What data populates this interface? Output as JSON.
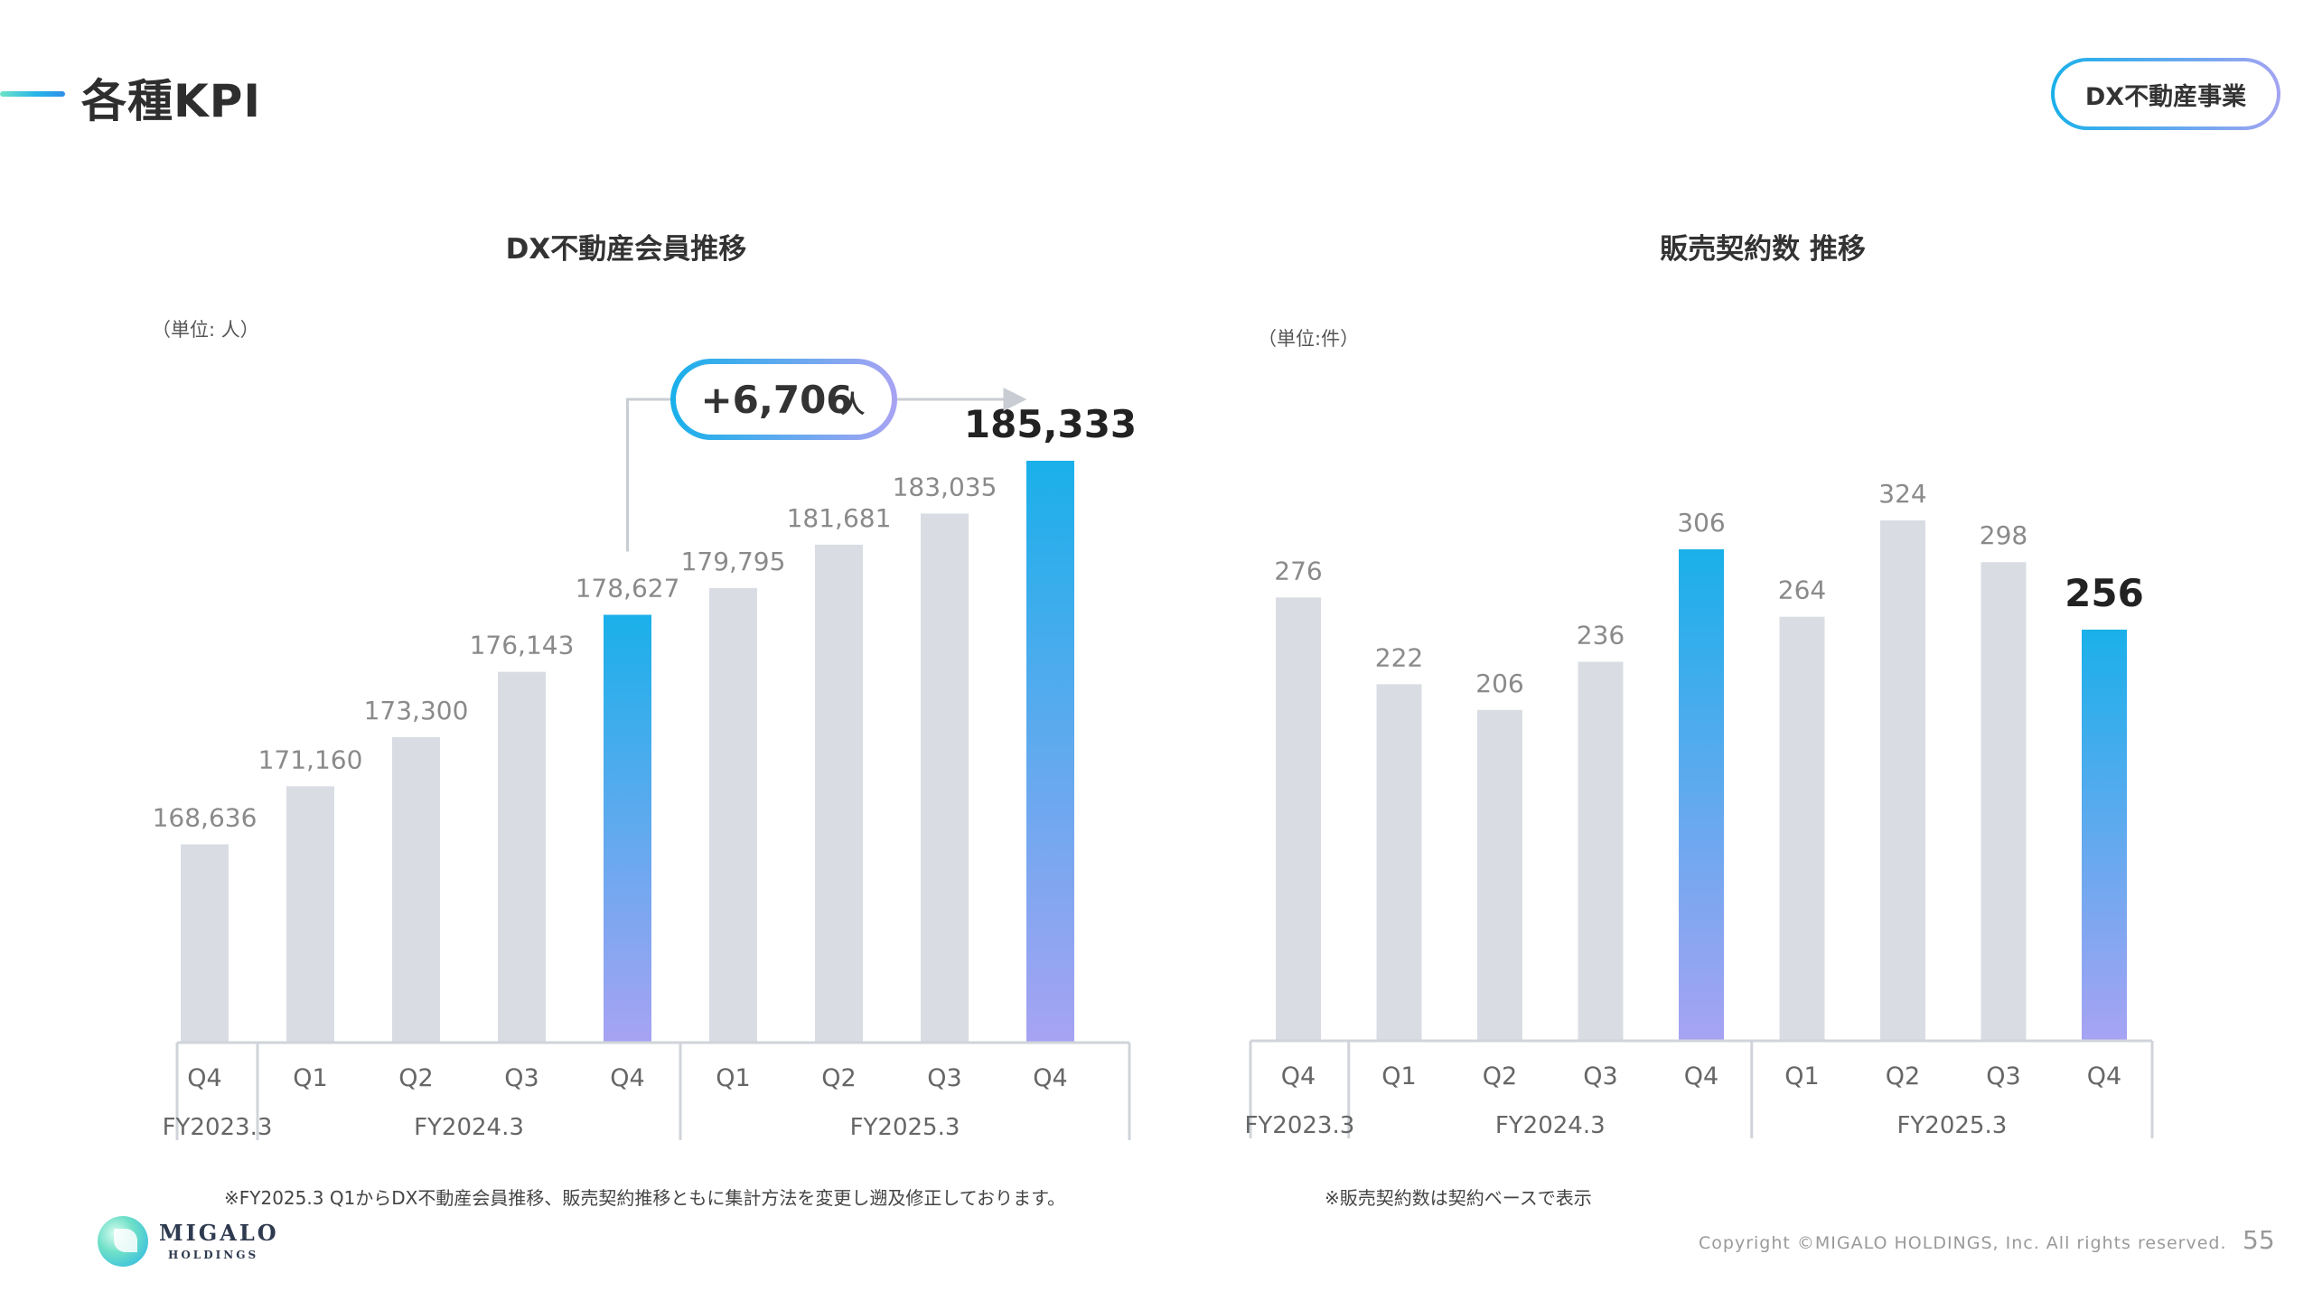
{
  "header": {
    "title": "各種KPI",
    "badge": "DX不動産事業"
  },
  "colors": {
    "bar_grey": "#d9dde3",
    "highlight_top": "#1ab0ea",
    "highlight_bottom": "#a7a3f3",
    "axis_line": "#d0d4da",
    "value_label": "#8a8a8a"
  },
  "chart_data": [
    {
      "type": "bar",
      "title": "DX不動産会員推移",
      "unit": "（単位: 人）",
      "categories": [
        "Q4",
        "Q1",
        "Q2",
        "Q3",
        "Q4",
        "Q1",
        "Q2",
        "Q3",
        "Q4"
      ],
      "values": [
        168636,
        171160,
        173300,
        176143,
        178627,
        179795,
        181681,
        183035,
        185333
      ],
      "value_labels": [
        "168,636",
        "171,160",
        "173,300",
        "176,143",
        "178,627",
        "179,795",
        "181,681",
        "183,035",
        "185,333"
      ],
      "highlight": [
        4,
        8
      ],
      "groups": [
        {
          "label": "FY2023.3",
          "start": 0,
          "end": 0
        },
        {
          "label": "FY2024.3",
          "start": 1,
          "end": 4
        },
        {
          "label": "FY2025.3",
          "start": 5,
          "end": 8
        }
      ],
      "annotation": {
        "value": "+6,706",
        "unit": "人",
        "from": 4,
        "to": 8
      }
    },
    {
      "type": "bar",
      "title": "販売契約数 推移",
      "unit": "（単位:件）",
      "categories": [
        "Q4",
        "Q1",
        "Q2",
        "Q3",
        "Q4",
        "Q1",
        "Q2",
        "Q3",
        "Q4"
      ],
      "values": [
        276,
        222,
        206,
        236,
        306,
        264,
        324,
        298,
        256
      ],
      "value_labels": [
        "276",
        "222",
        "206",
        "236",
        "306",
        "264",
        "324",
        "298",
        "256"
      ],
      "highlight": [
        4,
        8
      ],
      "groups": [
        {
          "label": "FY2023.3",
          "start": 0,
          "end": 0
        },
        {
          "label": "FY2024.3",
          "start": 1,
          "end": 4
        },
        {
          "label": "FY2025.3",
          "start": 5,
          "end": 8
        }
      ]
    }
  ],
  "footnotes": {
    "left": "※FY2025.3 Q1からDX不動産会員推移、販売契約推移ともに集計方法を変更し遡及修正しております。",
    "right": "※販売契約数は契約ベースで表示"
  },
  "footer": {
    "logo_name": "MIGALO",
    "logo_sub": "HOLDINGS",
    "copyright": "Copyright ©MIGALO HOLDINGS, Inc. All rights reserved.",
    "page_number": "55"
  }
}
